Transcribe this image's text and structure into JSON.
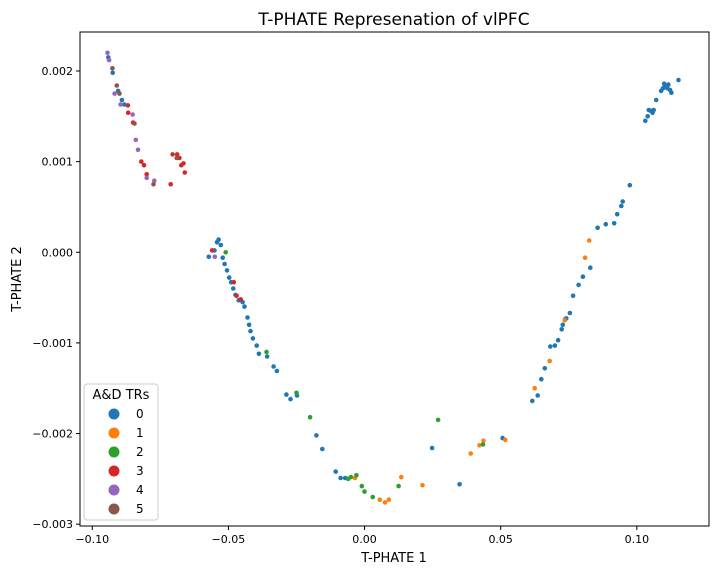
{
  "chart_data": {
    "type": "scatter",
    "title": "T-PHATE Represenation of vlPFC",
    "xlabel": "T-PHATE 1",
    "ylabel": "T-PHATE 2",
    "xlim": [
      -0.1045,
      0.1265
    ],
    "ylim": [
      -0.00302,
      0.00243
    ],
    "xticks": [
      -0.1,
      -0.05,
      0.0,
      0.05,
      0.1
    ],
    "xtick_labels": [
      "−0.10",
      "−0.05",
      "0.00",
      "0.05",
      "0.10"
    ],
    "yticks": [
      -0.003,
      -0.002,
      -0.001,
      0.0,
      0.001,
      0.002
    ],
    "ytick_labels": [
      "−0.003",
      "−0.002",
      "−0.001",
      "0.000",
      "0.001",
      "0.002"
    ],
    "grid": false,
    "legend": {
      "title": "A&D TRs",
      "placement": "lower-left"
    },
    "series": [
      {
        "name": "0",
        "color": "#1f77b4",
        "points": [
          [
            -0.0941,
            0.00215
          ],
          [
            -0.0925,
            0.00198
          ],
          [
            -0.0905,
            0.00178
          ],
          [
            -0.0891,
            0.00168
          ],
          [
            -0.0882,
            0.00163
          ],
          [
            -0.0572,
            -5e-05
          ],
          [
            -0.0551,
            2e-05
          ],
          [
            -0.0542,
            0.00011
          ],
          [
            -0.0536,
            0.00014
          ],
          [
            -0.0528,
            8e-05
          ],
          [
            -0.0521,
            -6e-05
          ],
          [
            -0.0514,
            -0.00013
          ],
          [
            -0.0505,
            -0.0002
          ],
          [
            -0.0497,
            -0.00028
          ],
          [
            -0.049,
            -0.00033
          ],
          [
            -0.0482,
            -0.0004
          ],
          [
            -0.0474,
            -0.00047
          ],
          [
            -0.0462,
            -0.00053
          ],
          [
            -0.0448,
            -0.00055
          ],
          [
            -0.0441,
            -0.0006
          ],
          [
            -0.043,
            -0.00072
          ],
          [
            -0.0424,
            -0.0008
          ],
          [
            -0.0419,
            -0.00087
          ],
          [
            -0.041,
            -0.00095
          ],
          [
            -0.0396,
            -0.00103
          ],
          [
            -0.0388,
            -0.00112
          ],
          [
            -0.0358,
            -0.00115
          ],
          [
            -0.0334,
            -0.00126
          ],
          [
            -0.0322,
            -0.00131
          ],
          [
            -0.0287,
            -0.00157
          ],
          [
            -0.0272,
            -0.00162
          ],
          [
            -0.0248,
            -0.00158
          ],
          [
            -0.0177,
            -0.00202
          ],
          [
            -0.0155,
            -0.00217
          ],
          [
            -0.0106,
            -0.00242
          ],
          [
            -0.0088,
            -0.00249
          ],
          [
            -0.0071,
            -0.00249
          ],
          [
            0.0248,
            -0.00216
          ],
          [
            0.0349,
            -0.00256
          ],
          [
            0.0507,
            -0.00205
          ],
          [
            0.0616,
            -0.00164
          ],
          [
            0.0636,
            -0.00158
          ],
          [
            0.0649,
            -0.0014
          ],
          [
            0.0662,
            -0.00128
          ],
          [
            0.0682,
            -0.00104
          ],
          [
            0.0699,
            -0.00103
          ],
          [
            0.0711,
            -0.00097
          ],
          [
            0.0724,
            -0.00085
          ],
          [
            0.0728,
            -0.0008
          ],
          [
            0.0737,
            -0.00074
          ],
          [
            0.0741,
            -0.00073
          ],
          [
            0.0754,
            -0.00067
          ],
          [
            0.0766,
            -0.00048
          ],
          [
            0.0786,
            -0.00036
          ],
          [
            0.0802,
            -0.00027
          ],
          [
            0.0829,
            -0.00017
          ],
          [
            0.0856,
            0.00027
          ],
          [
            0.0886,
            0.00031
          ],
          [
            0.0917,
            0.00032
          ],
          [
            0.0928,
            0.00042
          ],
          [
            0.0943,
            0.00051
          ],
          [
            0.0948,
            0.00056
          ],
          [
            0.0974,
            0.00074
          ],
          [
            0.1031,
            0.00145
          ],
          [
            0.104,
            0.0015
          ],
          [
            0.1044,
            0.00157
          ],
          [
            0.1051,
            0.00156
          ],
          [
            0.1058,
            0.00154
          ],
          [
            0.1062,
            0.00157
          ],
          [
            0.1071,
            0.00168
          ],
          [
            0.1089,
            0.00178
          ],
          [
            0.1096,
            0.00181
          ],
          [
            0.11,
            0.00186
          ],
          [
            0.1107,
            0.00184
          ],
          [
            0.1112,
            0.00181
          ],
          [
            0.1116,
            0.00185
          ],
          [
            0.1122,
            0.00179
          ],
          [
            0.1127,
            0.00176
          ],
          [
            0.1153,
            0.0019
          ]
        ]
      },
      {
        "name": "1",
        "color": "#ff7f0e",
        "points": [
          [
            -0.0035,
            -0.00249
          ],
          [
            0.0056,
            -0.00273
          ],
          [
            0.0075,
            -0.00276
          ],
          [
            0.0089,
            -0.00273
          ],
          [
            0.0135,
            -0.00248
          ],
          [
            0.0213,
            -0.00257
          ],
          [
            0.039,
            -0.00222
          ],
          [
            0.0422,
            -0.00213
          ],
          [
            0.0437,
            -0.00208
          ],
          [
            0.0517,
            -0.00207
          ],
          [
            0.0625,
            -0.0015
          ],
          [
            0.068,
            -0.0012
          ],
          [
            0.0735,
            -0.00075
          ],
          [
            0.081,
            -6e-05
          ],
          [
            0.0825,
            0.00013
          ]
        ]
      },
      {
        "name": "2",
        "color": "#2ca02c",
        "points": [
          [
            -0.051,
            0.0
          ],
          [
            -0.036,
            -0.0011
          ],
          [
            -0.025,
            -0.00155
          ],
          [
            -0.02,
            -0.00182
          ],
          [
            -0.006,
            -0.0025
          ],
          [
            -0.003,
            -0.00246
          ],
          [
            -0.005,
            -0.00248
          ],
          [
            -0.001,
            -0.00258
          ],
          [
            0.0,
            -0.00264
          ],
          [
            0.003,
            -0.0027
          ],
          [
            0.0125,
            -0.00258
          ],
          [
            0.027,
            -0.00185
          ],
          [
            0.0435,
            -0.00212
          ]
        ]
      },
      {
        "name": "3",
        "color": "#d62728",
        "points": [
          [
            -0.0869,
            0.00162
          ],
          [
            -0.0868,
            0.00154
          ],
          [
            -0.085,
            0.00143
          ],
          [
            -0.082,
            0.001
          ],
          [
            -0.081,
            0.00096
          ],
          [
            -0.08,
            0.00086
          ],
          [
            -0.0712,
            0.00075
          ],
          [
            -0.0705,
            0.00108
          ],
          [
            -0.0688,
            0.00108
          ],
          [
            -0.068,
            0.00104
          ],
          [
            -0.0673,
            0.00096
          ],
          [
            -0.0665,
            0.00098
          ],
          [
            -0.066,
            0.00088
          ],
          [
            -0.056,
            2e-05
          ],
          [
            -0.048,
            -0.00033
          ],
          [
            -0.047,
            -0.00048
          ],
          [
            -0.0455,
            -0.00052
          ]
        ]
      },
      {
        "name": "4",
        "color": "#9467bd",
        "points": [
          [
            -0.0944,
            0.0022
          ],
          [
            -0.0938,
            0.00212
          ],
          [
            -0.0918,
            0.00175
          ],
          [
            -0.0896,
            0.00163
          ],
          [
            -0.0852,
            0.00152
          ],
          [
            -0.084,
            0.00124
          ],
          [
            -0.0832,
            0.00113
          ],
          [
            -0.08,
            0.00082
          ],
          [
            -0.0772,
            0.00079
          ],
          [
            -0.055,
            -5e-05
          ]
        ]
      },
      {
        "name": "5",
        "color": "#8c564b",
        "points": [
          [
            -0.0926,
            0.00203
          ],
          [
            -0.091,
            0.00184
          ],
          [
            -0.09,
            0.00175
          ],
          [
            -0.0845,
            0.00142
          ],
          [
            -0.0775,
            0.00075
          ],
          [
            -0.069,
            0.00104
          ]
        ]
      }
    ]
  }
}
